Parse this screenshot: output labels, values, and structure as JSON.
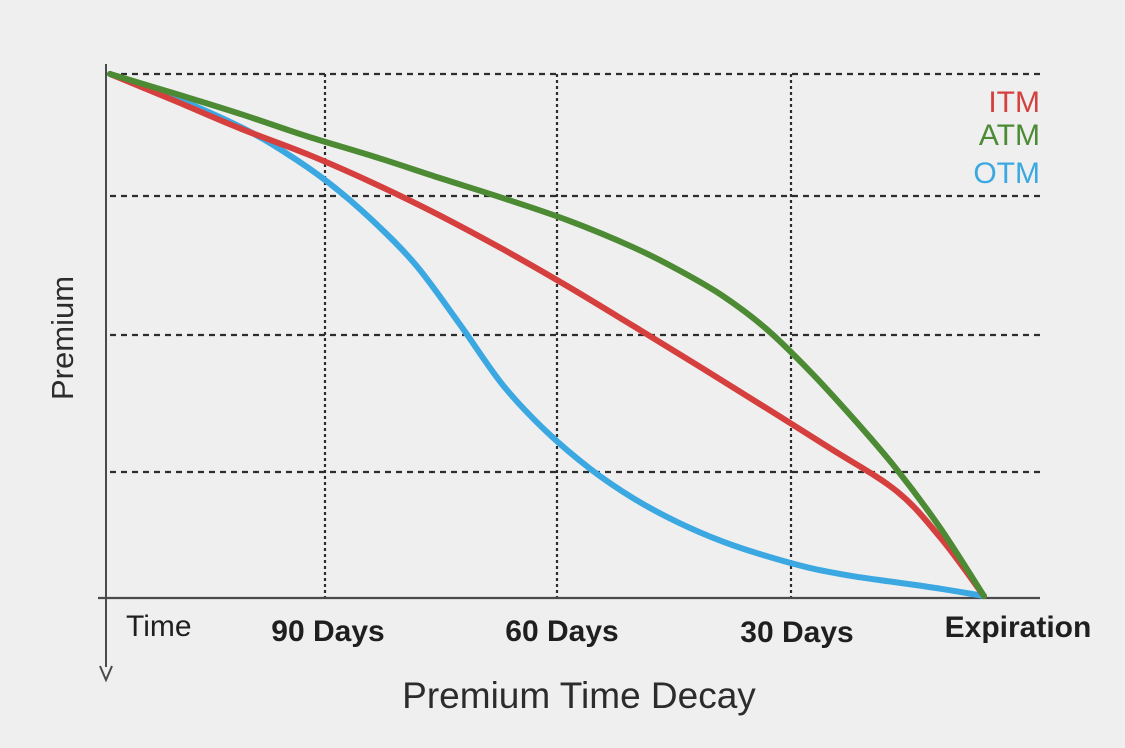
{
  "chart_data": {
    "type": "line",
    "title": "",
    "xlabel": "Premium Time Decay",
    "ylabel": "Premium",
    "x_ticks": [
      "Time",
      "90 Days",
      "60 Days",
      "30 Days",
      "Expiration"
    ],
    "x_tick_bold": [
      false,
      true,
      true,
      true,
      true
    ],
    "x_range": [
      0,
      100
    ],
    "y_range": [
      0,
      100
    ],
    "grid": true,
    "legend_position": "top-right",
    "series": [
      {
        "name": "ITM",
        "color": "#d5403f",
        "x": [
          0,
          7.5,
          15,
          22.5,
          30,
          37.5,
          45,
          52.5,
          60,
          67.5,
          75,
          82.5,
          90,
          95,
          100
        ],
        "y": [
          100,
          94.8,
          89.5,
          84.7,
          79.2,
          73.1,
          66.4,
          59.2,
          51.6,
          43.9,
          36.1,
          28.2,
          20.1,
          11.2,
          0
        ]
      },
      {
        "name": "ATM",
        "color": "#4c8a34",
        "x": [
          0,
          7.5,
          15,
          22.5,
          30,
          37.5,
          45,
          52.5,
          60,
          65,
          70,
          75,
          80,
          85,
          90,
          95,
          100
        ],
        "y": [
          100,
          96.2,
          92.3,
          88.1,
          84.3,
          80.2,
          76.2,
          71.9,
          66.7,
          62.5,
          57.6,
          51.3,
          43.2,
          34.1,
          24.3,
          13.0,
          0
        ]
      },
      {
        "name": "OTM",
        "color": "#3ba8e2",
        "x": [
          0,
          7.5,
          15,
          20,
          25,
          30,
          35,
          40,
          45,
          50,
          55,
          60,
          65,
          70,
          75,
          80,
          85,
          90,
          95,
          100
        ],
        "y": [
          100,
          95.4,
          89.8,
          85.0,
          79.2,
          72.0,
          63.4,
          52.1,
          40.3,
          31.4,
          24.3,
          18.6,
          14.1,
          10.5,
          7.7,
          5.4,
          3.8,
          2.6,
          1.4,
          0
        ]
      }
    ]
  }
}
